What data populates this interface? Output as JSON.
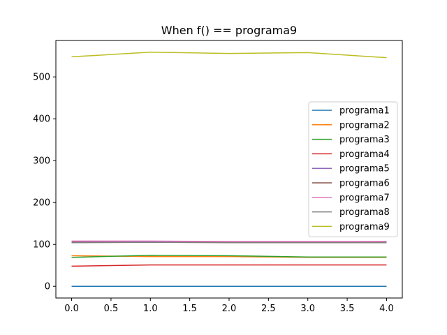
{
  "chart_data": {
    "type": "line",
    "title": "When f() == programa9",
    "xlabel": "",
    "ylabel": "",
    "x": [
      0,
      1,
      2,
      3,
      4
    ],
    "xlim": [
      -0.2,
      4.2
    ],
    "ylim": [
      -28,
      587
    ],
    "xticks": [
      0.0,
      0.5,
      1.0,
      1.5,
      2.0,
      2.5,
      3.0,
      3.5,
      4.0
    ],
    "xtick_labels": [
      "0.0",
      "0.5",
      "1.0",
      "1.5",
      "2.0",
      "2.5",
      "3.0",
      "3.5",
      "4.0"
    ],
    "yticks": [
      0,
      100,
      200,
      300,
      400,
      500
    ],
    "ytick_labels": [
      "0",
      "100",
      "200",
      "300",
      "400",
      "500"
    ],
    "grid": false,
    "legend_position": "center-right",
    "series": [
      {
        "name": "programa1",
        "color": "#1f77b4",
        "values": [
          0,
          0,
          0,
          0,
          0
        ]
      },
      {
        "name": "programa2",
        "color": "#ff7f0e",
        "values": [
          73,
          71,
          71,
          69,
          69
        ]
      },
      {
        "name": "programa3",
        "color": "#2ca02c",
        "values": [
          69,
          74,
          73,
          70,
          70
        ]
      },
      {
        "name": "programa4",
        "color": "#d62728",
        "values": [
          48,
          51,
          51,
          51,
          51
        ]
      },
      {
        "name": "programa5",
        "color": "#9467bd",
        "values": [
          106,
          107,
          106,
          106,
          107
        ]
      },
      {
        "name": "programa6",
        "color": "#8c564b",
        "values": [
          105,
          105,
          105,
          105,
          105
        ]
      },
      {
        "name": "programa7",
        "color": "#e377c2",
        "values": [
          108,
          108,
          107,
          107,
          107
        ]
      },
      {
        "name": "programa8",
        "color": "#7f7f7f",
        "values": [
          104,
          105,
          104,
          104,
          104
        ]
      },
      {
        "name": "programa9",
        "color": "#bcbd22",
        "values": [
          548,
          559,
          556,
          558,
          546
        ]
      }
    ]
  }
}
